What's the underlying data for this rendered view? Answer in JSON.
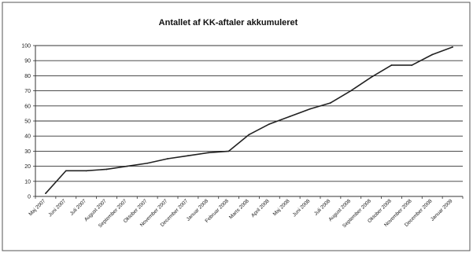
{
  "chart_data": {
    "type": "line",
    "title": "Antallet af KK-aftaler akkumuleret",
    "xlabel": "",
    "ylabel": "",
    "ylim": [
      0,
      100
    ],
    "y_ticks": [
      0,
      10,
      20,
      30,
      40,
      50,
      60,
      70,
      80,
      90,
      100
    ],
    "grid": true,
    "legend": "none",
    "categories": [
      "Maj 2007",
      "Juni 2007",
      "Juli 2007",
      "August 2007",
      "September 2007",
      "Oktober 2007",
      "November 2007",
      "December 2007",
      "Januar 2008",
      "Februar 2008",
      "Marts 2008",
      "April 2008",
      "Maj 2008",
      "Juni 2008",
      "Juli 2008",
      "August 2008",
      "September 2008",
      "Oktober 2008",
      "November 2008",
      "December 2008",
      "Januar 2009"
    ],
    "series": [
      {
        "values": [
          2,
          17,
          17,
          18,
          20,
          22,
          25,
          27,
          29,
          30,
          41,
          48,
          53,
          58,
          62,
          70,
          79,
          87,
          87,
          94,
          99
        ],
        "color": "#222222"
      }
    ]
  }
}
